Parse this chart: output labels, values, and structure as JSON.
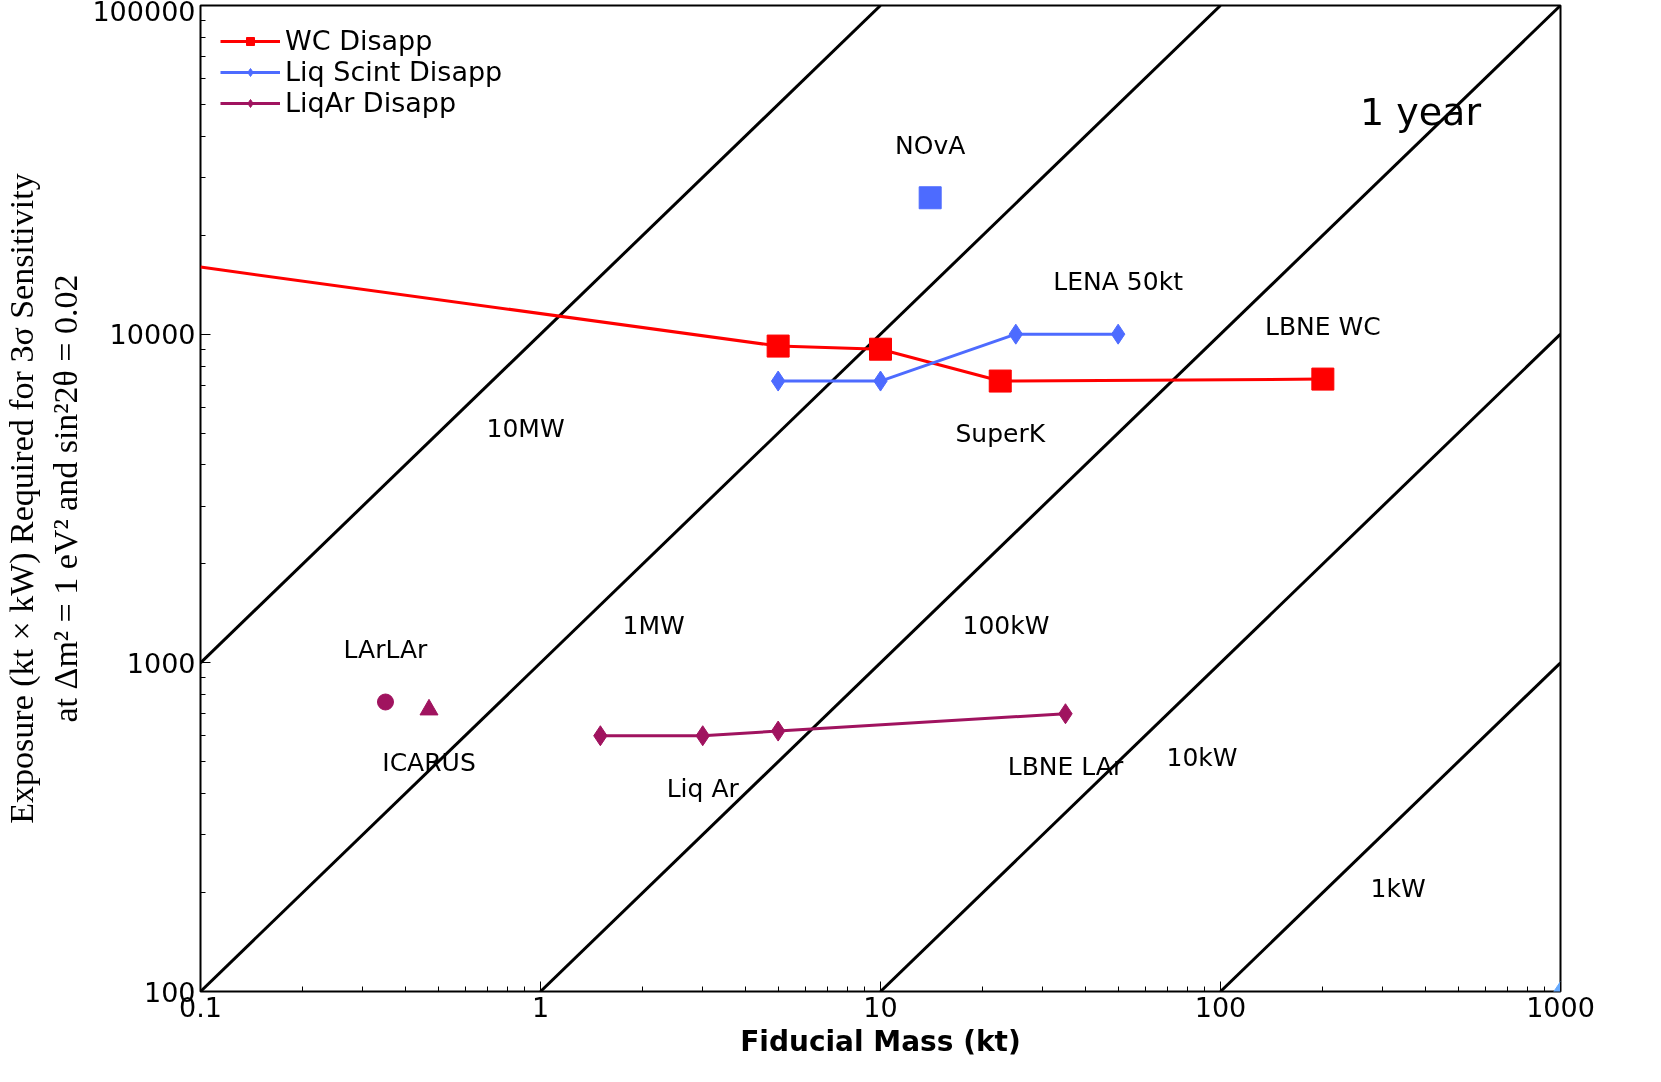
{
  "chart_data": {
    "type": "line",
    "xlabel": "Fiducial Mass (kt)",
    "ylabel": "Exposure (kt × kW) Required for 3σ Sensitivity\nat Δm² = 1 eV² and sin²2θ = 0.02",
    "log": "xy",
    "xlim": [
      0.1,
      1000
    ],
    "ylim": [
      100,
      100000
    ],
    "xticks": [
      0.1,
      1,
      10,
      100,
      1000
    ],
    "yticks": [
      100,
      1000,
      10000,
      100000
    ],
    "grid": false,
    "legend": "top left",
    "series": [
      {
        "name": "10MW",
        "color": "#000000",
        "x": [
          0.1,
          10
        ],
        "values": [
          1000,
          100000
        ]
      },
      {
        "name": "1MW",
        "color": "#000000",
        "x": [
          0.1,
          100
        ],
        "values": [
          100,
          100000
        ]
      },
      {
        "name": "100kW",
        "color": "#000000",
        "x": [
          1,
          1000
        ],
        "values": [
          100,
          100000
        ]
      },
      {
        "name": "10kW",
        "color": "#000000",
        "x": [
          10,
          1000
        ],
        "values": [
          100,
          10000
        ]
      },
      {
        "name": "1kW",
        "color": "#000000",
        "x": [
          100,
          1000
        ],
        "values": [
          100,
          1000
        ]
      },
      {
        "color": "#ff0000",
        "x": [
          0.1,
          5
        ],
        "values": [
          16000,
          9200
        ]
      },
      {
        "name": "WC Disapp",
        "color": "#ff0000",
        "marker": "square",
        "x": [
          5,
          10,
          22.5,
          200
        ],
        "values": [
          9200,
          9000,
          7200,
          7300
        ]
      },
      {
        "name": "Liq Scint Disapp",
        "color": "#4d6bff",
        "marker": "diamond",
        "x": [
          5,
          10,
          25,
          50
        ],
        "values": [
          7200,
          7200,
          10000,
          10000
        ]
      },
      {
        "name": "LiqAr Disapp",
        "color": "#a0135f",
        "marker": "diamond",
        "x": [
          1.5,
          3,
          5,
          35
        ],
        "values": [
          600,
          600,
          620,
          700
        ]
      },
      {
        "type": "scatter",
        "color": "#4d6bff",
        "marker": "square",
        "x": [
          14
        ],
        "values": [
          26000
        ]
      },
      {
        "type": "scatter",
        "color": "#a0135f",
        "marker": "circle",
        "x": [
          0.35
        ],
        "values": [
          760
        ]
      },
      {
        "type": "scatter",
        "color": "#a0135f",
        "marker": "triangle",
        "x": [
          0.47
        ],
        "values": [
          720
        ]
      },
      {
        "type": "scatter",
        "color": "#66aaff",
        "marker": "diamond",
        "x": [
          1000
        ],
        "values": [
          100
        ]
      }
    ],
    "annotations": [
      "1 year",
      {
        "text": "NOvA",
        "x": 14,
        "y": 26000
      },
      {
        "text": "LENA 50kt",
        "x": 50,
        "y": 10000
      },
      {
        "text": "LBNE WC",
        "x": 200,
        "y": 7300
      },
      {
        "text": "SuperK",
        "x": 22.5,
        "y": 7200
      },
      {
        "text": "LArLAr",
        "x": 0.35,
        "y": 760
      },
      {
        "text": "ICARUS",
        "x": 0.47,
        "y": 720
      },
      {
        "text": "Liq Ar",
        "x": 3,
        "y": 600
      },
      {
        "text": "LBNE LAr",
        "x": 35,
        "y": 700
      }
    ]
  }
}
